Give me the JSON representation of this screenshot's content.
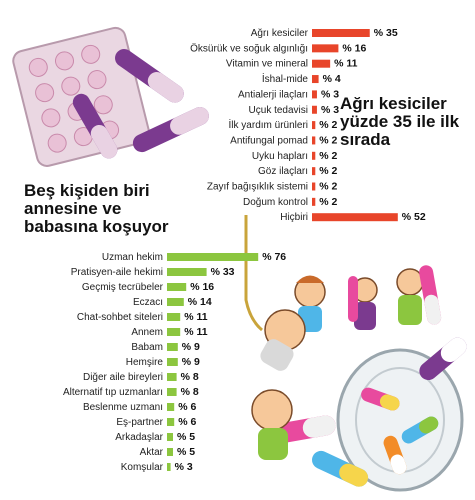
{
  "headings": {
    "top_right": "Ağrı kesiciler yüzde 35 ile ilk sırada",
    "left": "Beş kişiden biri annesine ve babasına koşuyor"
  },
  "colors": {
    "top_bar": "#e8452a",
    "bottom_bar": "#8cc63f",
    "label_text": "#222222",
    "pill_purple": "#7b3a8f",
    "pill_pink": "#e9c1d6"
  },
  "illustration": {
    "items": [
      "pill-blister-pack",
      "capsules",
      "medicine-jar",
      "cartoon-people"
    ]
  },
  "chart_data": [
    {
      "type": "bar",
      "orientation": "horizontal",
      "title": "Ağrı kesiciler yüzde 35 ile ilk sırada",
      "value_prefix": "% ",
      "categories": [
        "Ağrı kesiciler",
        "Öksürük ve soğuk algınlığı",
        "Vitamin ve mineral",
        "İshal-mide",
        "Antialerji ilaçları",
        "Uçuk tedavisi",
        "İlk yardım ürünleri",
        "Antifungal pomad",
        "Uyku hapları",
        "Göz ilaçları",
        "Zayıf bağışıklık sistemi",
        "Doğum kontrol",
        "Hiçbiri"
      ],
      "values": [
        35,
        16,
        11,
        4,
        3,
        3,
        2,
        2,
        2,
        2,
        2,
        2,
        52
      ]
    },
    {
      "type": "bar",
      "orientation": "horizontal",
      "title": "Beş kişiden biri annesine ve babasına koşuyor",
      "value_prefix": "% ",
      "categories": [
        "Uzman hekim",
        "Pratisyen-aile hekimi",
        "Geçmiş tecrübeler",
        "Eczacı",
        "Chat-sohbet siteleri",
        "Annem",
        "Babam",
        "Hemşire",
        "Diğer aile bireyleri",
        "Alternatif tıp uzmanları",
        "Beslenme uzmanı",
        "Eş-partner",
        "Arkadaşlar",
        "Aktar",
        "Komşular"
      ],
      "values": [
        76,
        33,
        16,
        14,
        11,
        11,
        9,
        9,
        8,
        8,
        6,
        6,
        5,
        5,
        3
      ]
    }
  ]
}
